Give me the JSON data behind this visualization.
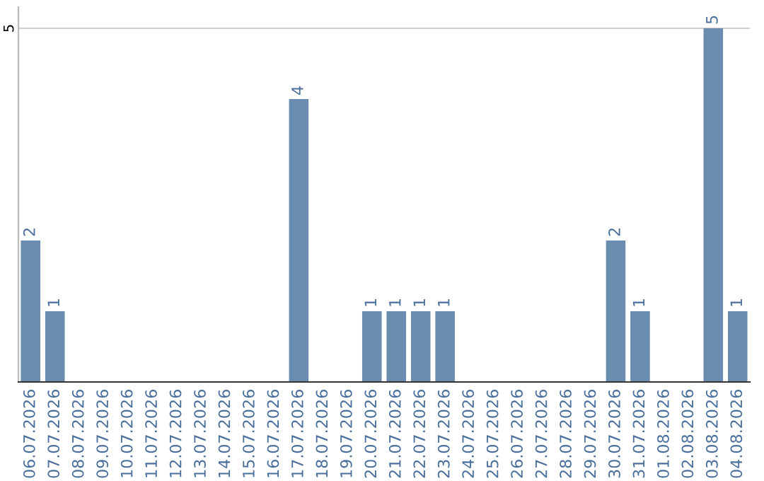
{
  "chart_data": {
    "type": "bar",
    "categories": [
      "06.07.2026",
      "07.07.2026",
      "08.07.2026",
      "09.07.2026",
      "10.07.2026",
      "11.07.2026",
      "12.07.2026",
      "13.07.2026",
      "14.07.2026",
      "15.07.2026",
      "16.07.2026",
      "17.07.2026",
      "18.07.2026",
      "19.07.2026",
      "20.07.2026",
      "21.07.2026",
      "22.07.2026",
      "23.07.2026",
      "24.07.2026",
      "25.07.2026",
      "26.07.2026",
      "27.07.2026",
      "28.07.2026",
      "29.07.2026",
      "30.07.2026",
      "31.07.2026",
      "01.08.2026",
      "02.08.2026",
      "03.08.2026",
      "04.08.2026"
    ],
    "values": [
      2,
      1,
      0,
      0,
      0,
      0,
      0,
      0,
      0,
      0,
      0,
      4,
      0,
      0,
      1,
      1,
      1,
      1,
      0,
      0,
      0,
      0,
      0,
      0,
      2,
      1,
      0,
      0,
      5,
      1
    ],
    "color": "#6a8caf",
    "value_labels": [
      "2",
      "1",
      null,
      null,
      null,
      null,
      null,
      null,
      null,
      null,
      null,
      "4",
      null,
      null,
      "1",
      "1",
      "1",
      "1",
      null,
      null,
      null,
      null,
      null,
      null,
      "2",
      "1",
      null,
      null,
      "5",
      "1"
    ],
    "ylim": [
      0,
      5.3
    ],
    "yticks": [
      5
    ],
    "grid": "y"
  }
}
